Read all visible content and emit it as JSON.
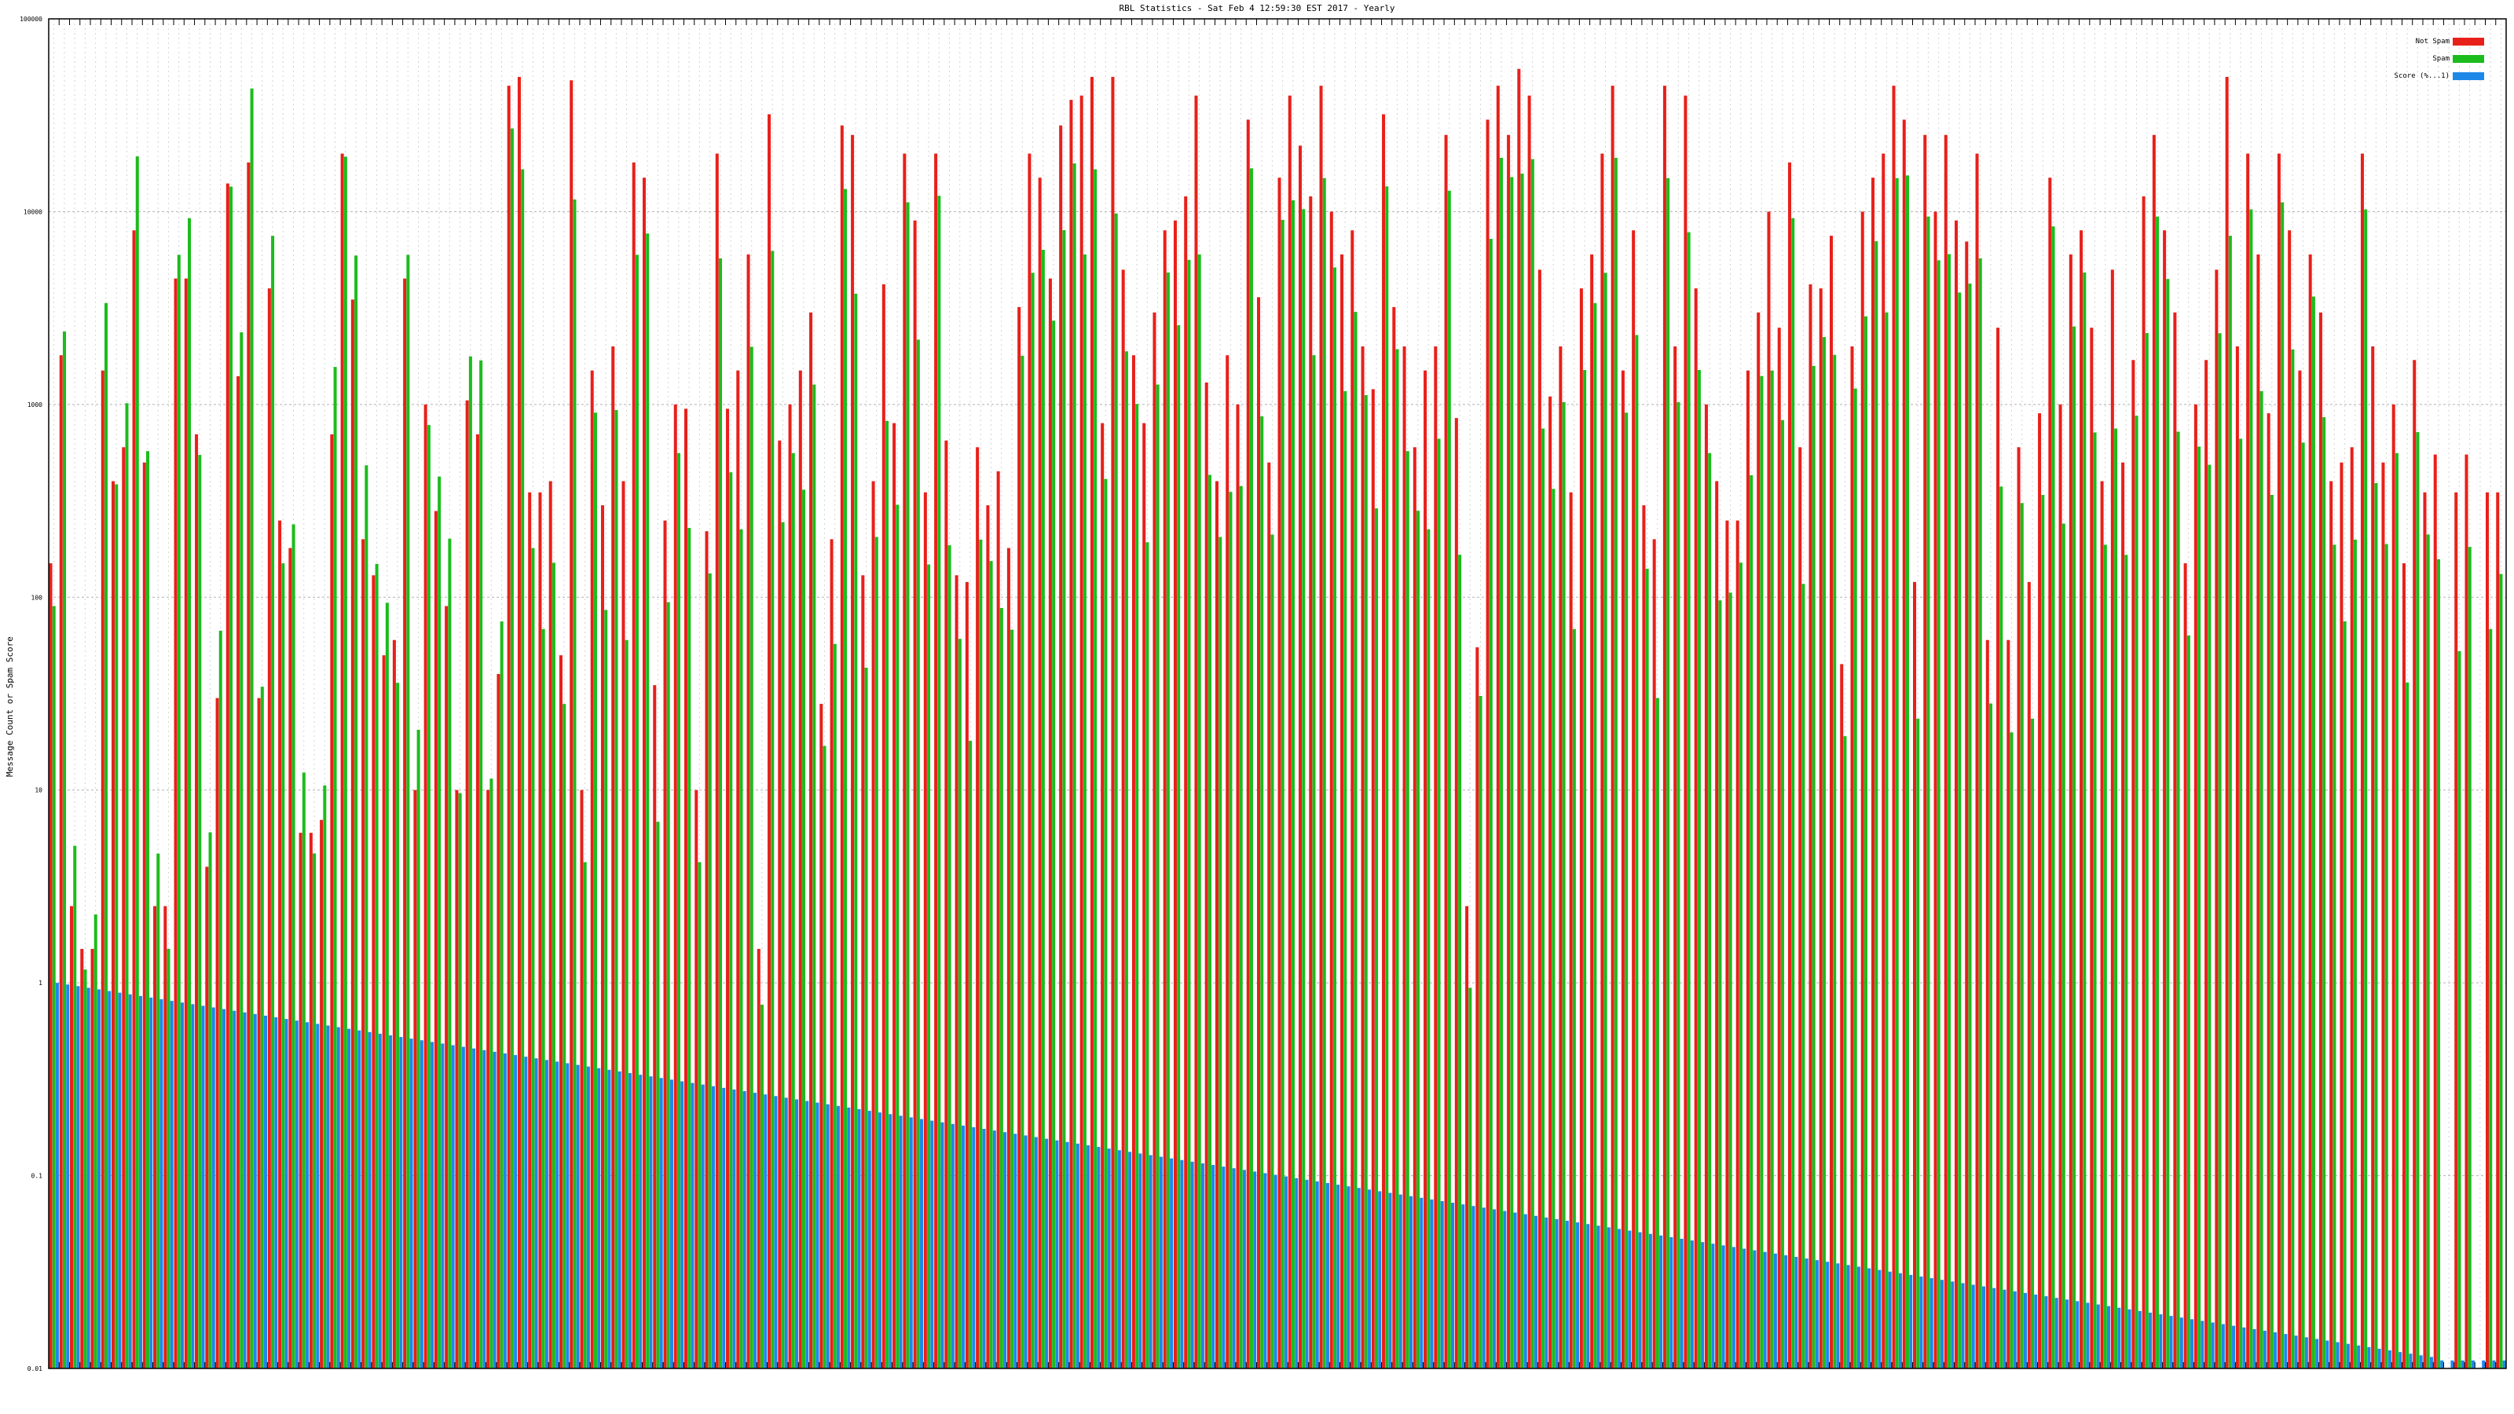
{
  "chart_data": {
    "type": "bar",
    "title": "RBL Statistics - Sat Feb  4 12:59:30 EST 2017 - Yearly",
    "ylabel": "Message Count or Spam Score",
    "xlabel": "",
    "scale": "log",
    "ylim": [
      0.01,
      100000
    ],
    "yticks": [
      "0.01",
      "0.1",
      "1",
      "10",
      "100",
      "1000",
      "10000",
      "100000"
    ],
    "grid": true,
    "legend_position": "top-right",
    "series": [
      {
        "name": "Not Spam",
        "color": "#e8201a"
      },
      {
        "name": "Spam",
        "color": "#1cbc1c"
      },
      {
        "name": "Score (%...1)",
        "color": "#1e88e8"
      }
    ],
    "not_spam": [
      150,
      1800,
      2.5,
      1.5,
      1.5,
      1500,
      400,
      600,
      8000,
      500,
      2.5,
      2.5,
      4500,
      4500,
      700,
      4,
      30,
      14000,
      1400,
      18000,
      30,
      4000,
      250,
      180,
      6,
      6,
      7,
      700,
      20000,
      3500,
      200,
      130,
      50,
      60,
      4500,
      10,
      1000,
      280,
      90,
      10,
      1050,
      700,
      10,
      40,
      45000,
      50000,
      350,
      350,
      400,
      50,
      48000,
      10,
      1500,
      300,
      2000,
      400,
      18000,
      15000,
      35,
      250,
      1000,
      950,
      10,
      220,
      20000,
      950,
      1500,
      6000,
      1.5,
      32000,
      650,
      1000,
      1500,
      3000,
      28,
      200,
      28000,
      25000,
      130,
      400,
      4200,
      800,
      20000,
      9000,
      350,
      20000,
      650,
      130,
      120,
      600,
      300,
      450,
      180,
      3200,
      20000,
      15000,
      4500,
      28000,
      38000,
      40000,
      50000,
      800,
      50000,
      5000,
      1800,
      800,
      3000,
      8000,
      9000,
      12000,
      40000,
      1300,
      400,
      1800,
      1000,
      30000,
      3600,
      500,
      15000,
      40000,
      22000,
      12000,
      45000,
      10000,
      6000,
      8000,
      2000,
      1200,
      32000,
      3200,
      2000,
      600,
      1500,
      2000,
      25000,
      850,
      2.5,
      55,
      30000,
      45000,
      25000,
      55000,
      40000,
      5000,
      1100,
      2000,
      350,
      4000,
      6000,
      20000,
      45000,
      1500,
      8000,
      300,
      200,
      45000,
      2000,
      40000,
      4000,
      1000,
      400,
      250,
      250,
      1500,
      3000,
      10000,
      2500,
      18000,
      600,
      4200,
      4000,
      7500,
      45,
      2000,
      10000,
      15000,
      20000,
      45000,
      30000,
      120,
      25000,
      10000,
      25000,
      9000,
      7000,
      20000,
      60,
      2500,
      60,
      600,
      120,
      900,
      15000,
      1000,
      6000,
      8000,
      2500,
      400,
      5000,
      500,
      1700,
      12000,
      25000,
      8000,
      3000,
      150,
      1000,
      1700,
      5000,
      50000,
      2000,
      20000,
      6000,
      900,
      20000,
      8000,
      1500,
      6000,
      3000,
      400,
      500,
      600,
      20000,
      2000,
      500,
      1000,
      150,
      1700,
      350,
      550,
      0.01,
      350,
      550,
      0.01,
      350,
      350
    ]
  }
}
